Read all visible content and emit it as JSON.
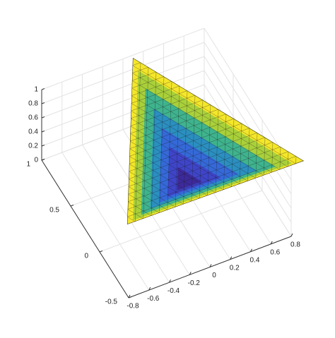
{
  "chart_data": {
    "type": "surface3d",
    "xlim": [
      -0.8,
      0.8
    ],
    "xticks": [
      -0.8,
      -0.6,
      -0.4,
      -0.2,
      0,
      0.2,
      0.4,
      0.6,
      0.8
    ],
    "ylim": [
      -0.5,
      1
    ],
    "yticks": [
      -0.5,
      0,
      0.5,
      1
    ],
    "zlim": [
      0,
      1
    ],
    "zticks": [
      0,
      0.2,
      0.4,
      0.6,
      0.8,
      1
    ],
    "grid": true
  }
}
